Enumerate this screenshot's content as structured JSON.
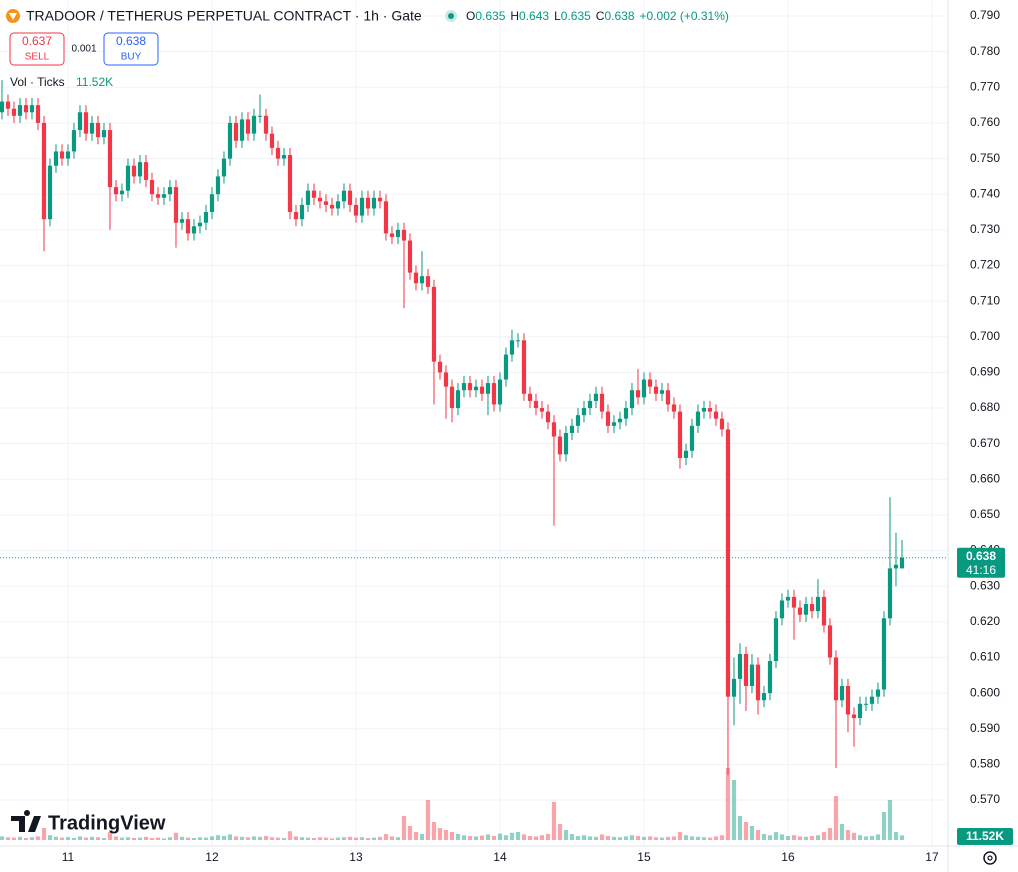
{
  "header": {
    "symbol": "TRADOOR / TETHERUS PERPETUAL CONTRACT · 1h · Gate",
    "legend": [
      {
        "label": "O",
        "value": 0.635
      },
      {
        "label": "H",
        "value": 0.643
      },
      {
        "label": "L",
        "value": 0.635
      },
      {
        "label": "C",
        "value": 0.638
      }
    ],
    "change": "+0.002 (+0.31%)",
    "sell_price": "0.637",
    "sell": "SELL",
    "spread": "0.001",
    "buy_price": "0.638",
    "buy": "BUY",
    "volume_title": "Vol · Ticks",
    "volume_value": "11.52K",
    "countdown": "41:16",
    "brand": "TradingView"
  },
  "chart_data": {
    "type": "candlestick",
    "up_color": "#089981",
    "down_color": "#f23645",
    "grid": true,
    "x": [
      -11,
      -10,
      -9,
      -8,
      -7,
      -6,
      -5,
      -4,
      -3,
      -2,
      -1,
      0,
      1,
      2,
      3,
      4,
      5,
      6,
      7,
      8,
      9,
      10,
      11,
      12,
      13,
      14,
      15,
      16,
      17,
      18,
      19,
      20,
      21,
      22,
      23,
      24,
      25,
      26,
      27,
      28,
      29,
      30,
      31,
      32,
      33,
      34,
      35,
      36,
      37,
      38,
      39,
      40,
      41,
      42,
      43,
      44,
      45,
      46,
      47,
      48,
      49,
      50,
      51,
      52,
      53,
      54,
      55,
      56,
      57,
      58,
      59,
      60,
      61,
      62,
      63,
      64,
      65,
      66,
      67,
      68,
      69,
      70,
      71,
      72,
      73,
      74,
      75,
      76,
      77,
      78,
      79,
      80,
      81,
      82,
      83,
      84,
      85,
      86,
      87,
      88,
      89,
      90,
      91,
      92,
      93,
      94,
      95,
      96,
      97,
      98,
      99,
      100,
      101,
      102,
      103,
      104,
      105,
      106,
      107,
      108,
      109,
      110,
      111,
      112,
      113,
      114,
      115,
      116,
      117,
      118,
      119,
      120,
      121,
      122,
      123,
      124,
      125,
      126,
      127,
      128,
      129,
      130,
      131,
      132,
      133,
      134,
      135,
      136,
      137,
      138,
      139
    ],
    "open": [
      0.763,
      0.766,
      0.764,
      0.762,
      0.765,
      0.763,
      0.765,
      0.76,
      0.733,
      0.748,
      0.752,
      0.75,
      0.752,
      0.758,
      0.763,
      0.757,
      0.76,
      0.756,
      0.758,
      0.742,
      0.74,
      0.741,
      0.748,
      0.745,
      0.749,
      0.744,
      0.74,
      0.739,
      0.74,
      0.742,
      0.732,
      0.733,
      0.729,
      0.731,
      0.732,
      0.735,
      0.74,
      0.745,
      0.75,
      0.76,
      0.755,
      0.761,
      0.757,
      0.762,
      0.762,
      0.757,
      0.753,
      0.75,
      0.751,
      0.735,
      0.733,
      0.737,
      0.741,
      0.739,
      0.738,
      0.737,
      0.736,
      0.738,
      0.741,
      0.737,
      0.734,
      0.739,
      0.736,
      0.739,
      0.738,
      0.729,
      0.728,
      0.73,
      0.727,
      0.718,
      0.715,
      0.717,
      0.714,
      0.693,
      0.69,
      0.686,
      0.68,
      0.685,
      0.687,
      0.685,
      0.686,
      0.684,
      0.687,
      0.681,
      0.688,
      0.695,
      0.699,
      0.699,
      0.684,
      0.682,
      0.68,
      0.679,
      0.676,
      0.672,
      0.667,
      0.673,
      0.675,
      0.678,
      0.68,
      0.682,
      0.684,
      0.679,
      0.675,
      0.676,
      0.677,
      0.68,
      0.685,
      0.683,
      0.688,
      0.686,
      0.684,
      0.685,
      0.681,
      0.679,
      0.666,
      0.668,
      0.675,
      0.679,
      0.68,
      0.679,
      0.677,
      0.674,
      0.599,
      0.604,
      0.611,
      0.602,
      0.608,
      0.598,
      0.6,
      0.609,
      0.621,
      0.626,
      0.627,
      0.624,
      0.622,
      0.625,
      0.623,
      0.627,
      0.619,
      0.61,
      0.598,
      0.602,
      0.594,
      0.593,
      0.597,
      0.597,
      0.599,
      0.601,
      0.621,
      0.635,
      0.635
    ],
    "high": [
      0.772,
      0.768,
      0.766,
      0.767,
      0.767,
      0.767,
      0.767,
      0.762,
      0.75,
      0.754,
      0.754,
      0.754,
      0.76,
      0.765,
      0.765,
      0.762,
      0.762,
      0.76,
      0.76,
      0.744,
      0.743,
      0.75,
      0.75,
      0.751,
      0.751,
      0.746,
      0.742,
      0.742,
      0.744,
      0.744,
      0.735,
      0.735,
      0.733,
      0.734,
      0.737,
      0.742,
      0.747,
      0.752,
      0.762,
      0.762,
      0.763,
      0.763,
      0.764,
      0.768,
      0.764,
      0.759,
      0.755,
      0.753,
      0.753,
      0.737,
      0.739,
      0.743,
      0.743,
      0.741,
      0.74,
      0.739,
      0.74,
      0.743,
      0.743,
      0.739,
      0.741,
      0.741,
      0.741,
      0.741,
      0.74,
      0.731,
      0.732,
      0.732,
      0.729,
      0.72,
      0.724,
      0.719,
      0.716,
      0.695,
      0.692,
      0.688,
      0.687,
      0.689,
      0.689,
      0.688,
      0.688,
      0.689,
      0.689,
      0.69,
      0.697,
      0.702,
      0.701,
      0.701,
      0.686,
      0.684,
      0.682,
      0.681,
      0.678,
      0.674,
      0.675,
      0.677,
      0.68,
      0.682,
      0.684,
      0.686,
      0.686,
      0.681,
      0.678,
      0.679,
      0.682,
      0.687,
      0.691,
      0.69,
      0.69,
      0.688,
      0.687,
      0.687,
      0.683,
      0.681,
      0.67,
      0.677,
      0.681,
      0.682,
      0.682,
      0.681,
      0.679,
      0.676,
      0.61,
      0.614,
      0.613,
      0.611,
      0.61,
      0.602,
      0.611,
      0.623,
      0.628,
      0.629,
      0.629,
      0.626,
      0.627,
      0.627,
      0.632,
      0.629,
      0.621,
      0.612,
      0.604,
      0.604,
      0.596,
      0.599,
      0.599,
      0.601,
      0.603,
      0.623,
      0.655,
      0.645,
      0.643
    ],
    "low": [
      0.761,
      0.762,
      0.76,
      0.76,
      0.761,
      0.761,
      0.758,
      0.724,
      0.731,
      0.746,
      0.748,
      0.748,
      0.75,
      0.756,
      0.755,
      0.755,
      0.754,
      0.754,
      0.73,
      0.738,
      0.738,
      0.739,
      0.743,
      0.743,
      0.742,
      0.738,
      0.737,
      0.737,
      0.738,
      0.725,
      0.73,
      0.727,
      0.727,
      0.729,
      0.73,
      0.733,
      0.738,
      0.743,
      0.748,
      0.753,
      0.753,
      0.755,
      0.755,
      0.76,
      0.755,
      0.751,
      0.748,
      0.748,
      0.733,
      0.731,
      0.731,
      0.735,
      0.737,
      0.736,
      0.735,
      0.734,
      0.734,
      0.736,
      0.735,
      0.732,
      0.732,
      0.734,
      0.734,
      0.736,
      0.727,
      0.726,
      0.726,
      0.708,
      0.716,
      0.713,
      0.713,
      0.712,
      0.681,
      0.688,
      0.677,
      0.676,
      0.678,
      0.683,
      0.683,
      0.683,
      0.682,
      0.678,
      0.679,
      0.679,
      0.686,
      0.693,
      0.697,
      0.682,
      0.68,
      0.678,
      0.677,
      0.674,
      0.647,
      0.665,
      0.665,
      0.671,
      0.673,
      0.676,
      0.678,
      0.68,
      0.677,
      0.673,
      0.673,
      0.674,
      0.675,
      0.678,
      0.681,
      0.681,
      0.684,
      0.682,
      0.682,
      0.679,
      0.677,
      0.663,
      0.664,
      0.666,
      0.673,
      0.677,
      0.677,
      0.675,
      0.672,
      0.577,
      0.591,
      0.597,
      0.595,
      0.6,
      0.594,
      0.596,
      0.598,
      0.607,
      0.619,
      0.624,
      0.615,
      0.62,
      0.62,
      0.621,
      0.621,
      0.617,
      0.608,
      0.579,
      0.596,
      0.589,
      0.585,
      0.591,
      0.595,
      0.595,
      0.597,
      0.599,
      0.619,
      0.63,
      0.635
    ],
    "close": [
      0.766,
      0.764,
      0.762,
      0.765,
      0.763,
      0.765,
      0.76,
      0.733,
      0.748,
      0.752,
      0.75,
      0.752,
      0.758,
      0.763,
      0.757,
      0.76,
      0.756,
      0.758,
      0.742,
      0.74,
      0.741,
      0.748,
      0.745,
      0.749,
      0.744,
      0.74,
      0.739,
      0.74,
      0.742,
      0.732,
      0.733,
      0.729,
      0.731,
      0.732,
      0.735,
      0.74,
      0.745,
      0.75,
      0.76,
      0.755,
      0.761,
      0.757,
      0.762,
      0.762,
      0.757,
      0.753,
      0.75,
      0.751,
      0.735,
      0.733,
      0.737,
      0.741,
      0.739,
      0.738,
      0.737,
      0.736,
      0.738,
      0.741,
      0.737,
      0.734,
      0.739,
      0.736,
      0.739,
      0.738,
      0.729,
      0.728,
      0.73,
      0.727,
      0.718,
      0.715,
      0.717,
      0.714,
      0.693,
      0.69,
      0.686,
      0.68,
      0.685,
      0.687,
      0.685,
      0.686,
      0.684,
      0.687,
      0.681,
      0.688,
      0.695,
      0.699,
      0.699,
      0.684,
      0.682,
      0.68,
      0.679,
      0.676,
      0.672,
      0.667,
      0.673,
      0.675,
      0.678,
      0.68,
      0.682,
      0.684,
      0.679,
      0.675,
      0.676,
      0.677,
      0.68,
      0.685,
      0.683,
      0.688,
      0.686,
      0.684,
      0.685,
      0.681,
      0.679,
      0.666,
      0.668,
      0.675,
      0.679,
      0.68,
      0.679,
      0.677,
      0.674,
      0.599,
      0.604,
      0.611,
      0.602,
      0.608,
      0.598,
      0.6,
      0.609,
      0.621,
      0.626,
      0.627,
      0.624,
      0.622,
      0.625,
      0.623,
      0.627,
      0.619,
      0.61,
      0.598,
      0.602,
      0.594,
      0.593,
      0.597,
      0.597,
      0.599,
      0.601,
      0.621,
      0.635,
      0.636,
      0.638
    ],
    "volume": [
      9000,
      7000,
      6000,
      8000,
      5000,
      7000,
      9000,
      30000,
      12000,
      8000,
      6000,
      7000,
      5000,
      9000,
      6000,
      8000,
      7000,
      5000,
      20000,
      9000,
      6000,
      7000,
      5000,
      6000,
      8000,
      5000,
      6000,
      4000,
      7000,
      18000,
      8000,
      6000,
      5000,
      7000,
      6000,
      9000,
      12000,
      10000,
      14000,
      9000,
      8000,
      7000,
      9000,
      8000,
      10000,
      7000,
      6000,
      5000,
      22000,
      9000,
      7000,
      6000,
      5000,
      7000,
      6000,
      4000,
      6000,
      7000,
      8000,
      6000,
      7000,
      5000,
      6000,
      8000,
      15000,
      9000,
      7000,
      60000,
      35000,
      20000,
      15000,
      100000,
      45000,
      30000,
      25000,
      20000,
      15000,
      12000,
      10000,
      9000,
      11000,
      14000,
      10000,
      16000,
      12000,
      18000,
      20000,
      14000,
      10000,
      9000,
      12000,
      15000,
      95000,
      40000,
      25000,
      15000,
      10000,
      12000,
      9000,
      8000,
      14000,
      10000,
      8000,
      7000,
      9000,
      12000,
      10000,
      8000,
      9000,
      7000,
      6000,
      8000,
      9000,
      20000,
      12000,
      9000,
      8000,
      7000,
      6000,
      9000,
      12000,
      180000,
      150000,
      60000,
      45000,
      35000,
      25000,
      15000,
      12000,
      20000,
      14000,
      10000,
      12000,
      9000,
      8000,
      10000,
      12000,
      20000,
      30000,
      110000,
      40000,
      25000,
      18000,
      12000,
      9000,
      10000,
      14000,
      70000,
      100000,
      20000,
      11520
    ],
    "xlim": [
      -11.33,
      146.67
    ],
    "xticks": [
      {
        "value": 0,
        "label": "11"
      },
      {
        "value": 24,
        "label": "12"
      },
      {
        "value": 48,
        "label": "13"
      },
      {
        "value": 72,
        "label": "14"
      },
      {
        "value": 96,
        "label": "15"
      },
      {
        "value": 120,
        "label": "16"
      },
      {
        "value": 144,
        "label": "17"
      }
    ],
    "ylim": [
      0.5571,
      0.7945
    ],
    "yticks": [
      {
        "value": 0.79,
        "label": "0.790"
      },
      {
        "value": 0.78,
        "label": "0.780"
      },
      {
        "value": 0.77,
        "label": "0.770"
      },
      {
        "value": 0.76,
        "label": "0.760"
      },
      {
        "value": 0.75,
        "label": "0.750"
      },
      {
        "value": 0.74,
        "label": "0.740"
      },
      {
        "value": 0.73,
        "label": "0.730"
      },
      {
        "value": 0.72,
        "label": "0.720"
      },
      {
        "value": 0.71,
        "label": "0.710"
      },
      {
        "value": 0.7,
        "label": "0.700"
      },
      {
        "value": 0.69,
        "label": "0.690"
      },
      {
        "value": 0.68,
        "label": "0.680"
      },
      {
        "value": 0.67,
        "label": "0.670"
      },
      {
        "value": 0.66,
        "label": "0.660"
      },
      {
        "value": 0.65,
        "label": "0.650"
      },
      {
        "value": 0.64,
        "label": "0.640"
      },
      {
        "value": 0.63,
        "label": "0.630"
      },
      {
        "value": 0.62,
        "label": "0.620"
      },
      {
        "value": 0.61,
        "label": "0.610"
      },
      {
        "value": 0.6,
        "label": "0.600"
      },
      {
        "value": 0.59,
        "label": "0.590"
      },
      {
        "value": 0.58,
        "label": "0.580"
      },
      {
        "value": 0.57,
        "label": "0.570"
      }
    ]
  }
}
